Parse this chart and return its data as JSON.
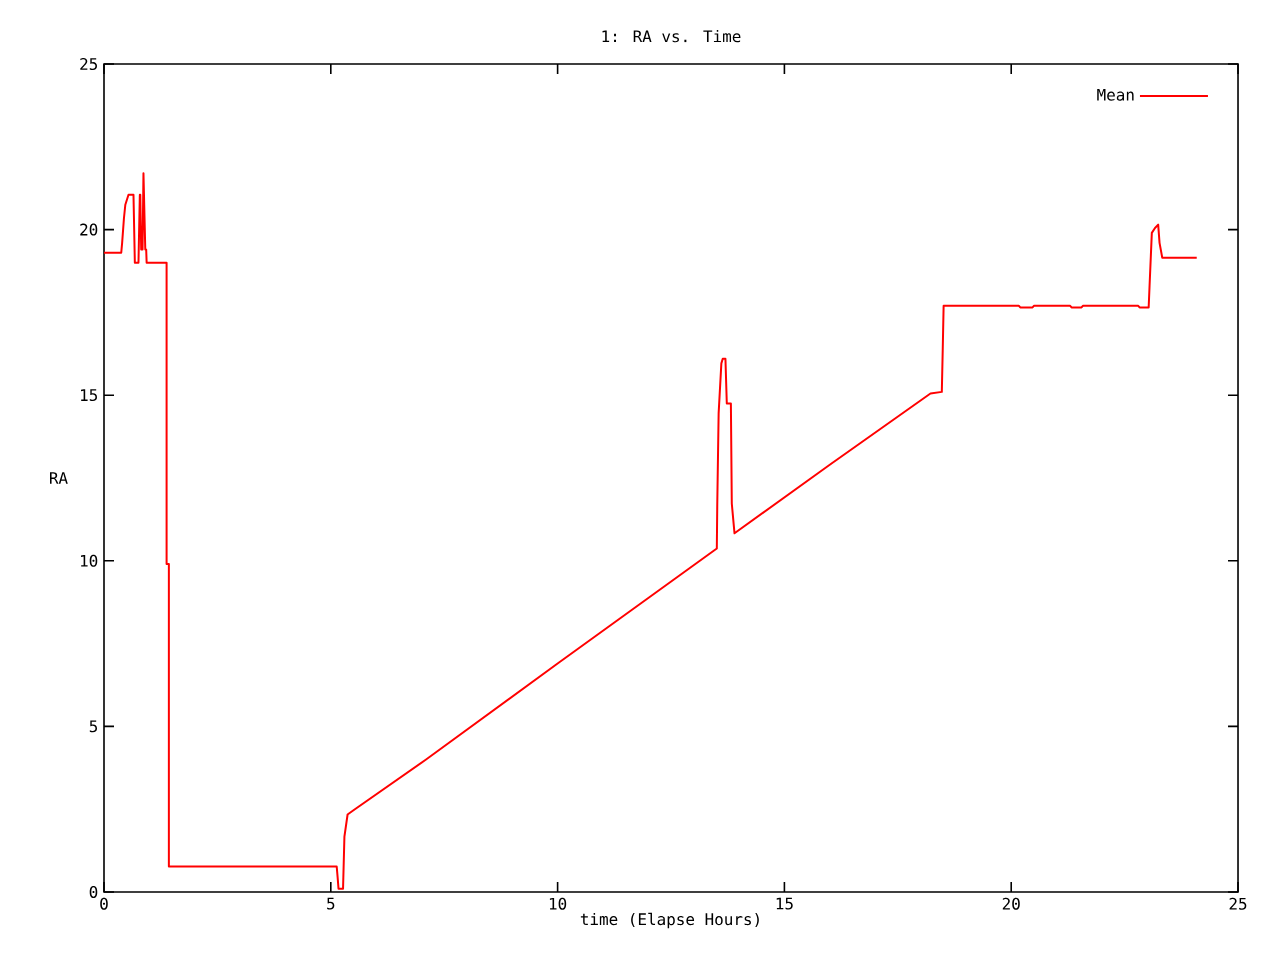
{
  "chart_data": {
    "type": "line",
    "title": "1: RA vs. Time",
    "xlabel": "time (Elapse Hours)",
    "ylabel": "RA",
    "x": [
      0,
      0.38,
      0.4,
      0.44,
      0.47,
      0.54,
      0.65,
      0.68,
      0.76,
      0.79,
      0.8,
      0.82,
      0.85,
      0.87,
      0.91,
      0.93,
      0.94,
      1.38,
      1.38,
      1.43,
      1.43,
      5.13,
      5.15,
      5.17,
      5.27,
      5.3,
      5.37,
      5.5,
      7.1,
      10,
      13.51,
      13.52,
      13.55,
      13.61,
      13.64,
      13.7,
      13.73,
      13.82,
      13.84,
      13.9,
      16,
      18.22,
      18.47,
      18.49,
      18.51,
      20.17,
      20.2,
      20.47,
      20.5,
      21.3,
      21.33,
      21.55,
      21.58,
      22.8,
      22.83,
      23.03,
      23.05,
      23.1,
      23.17,
      23.24,
      23.27,
      23.33,
      24.09
    ],
    "series": [
      {
        "name": "Mean",
        "color": "#ff0000",
        "values": [
          19.3,
          19.3,
          19.6,
          20.35,
          20.75,
          21.05,
          21.05,
          19.0,
          19.0,
          21.05,
          21.05,
          19.4,
          19.4,
          21.7,
          19.4,
          19.4,
          19.0,
          19.0,
          9.9,
          9.9,
          0.77,
          0.77,
          0.45,
          0.1,
          0.1,
          1.67,
          2.34,
          2.47,
          4.0,
          6.9,
          10.37,
          11.73,
          14.45,
          15.96,
          16.1,
          16.1,
          14.75,
          14.75,
          11.73,
          10.83,
          12.9,
          15.05,
          15.1,
          16.36,
          17.7,
          17.7,
          17.65,
          17.65,
          17.7,
          17.7,
          17.65,
          17.65,
          17.7,
          17.7,
          17.65,
          17.65,
          18.3,
          19.9,
          20.05,
          20.15,
          19.6,
          19.15,
          19.15
        ]
      }
    ],
    "xlim": [
      0,
      25
    ],
    "ylim": [
      0,
      25
    ],
    "xticks": [
      0,
      5,
      10,
      15,
      20,
      25
    ],
    "yticks": [
      0,
      5,
      10,
      15,
      20,
      25
    ],
    "grid": false,
    "legend": "top right",
    "marker": "none",
    "line_style": "solid"
  }
}
